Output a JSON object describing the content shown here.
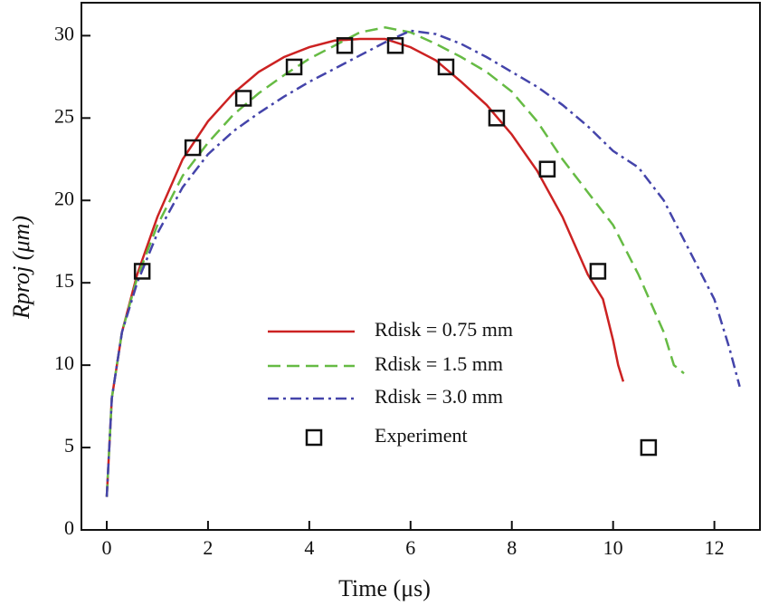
{
  "chart_data": {
    "type": "line",
    "xlabel": "Time (μs)",
    "ylabel": "Rproj (μm)",
    "xlim": [
      -0.5,
      12.9
    ],
    "ylim": [
      0,
      32
    ],
    "xticks": [
      0,
      2,
      4,
      6,
      8,
      10,
      12
    ],
    "yticks": [
      0,
      5,
      10,
      15,
      20,
      25,
      30
    ],
    "series": [
      {
        "name": "Rdisk = 0.75 mm",
        "color": "#cc2222",
        "style": "solid",
        "x": [
          0,
          0.1,
          0.3,
          0.6,
          1,
          1.5,
          2,
          2.5,
          3,
          3.5,
          4,
          4.5,
          5,
          5.5,
          6,
          6.5,
          7,
          7.5,
          8,
          8.5,
          9,
          9.5,
          9.8,
          10,
          10.1,
          10.2
        ],
        "y": [
          2,
          8,
          12,
          15.5,
          19,
          22.5,
          24.8,
          26.5,
          27.8,
          28.7,
          29.3,
          29.7,
          29.8,
          29.8,
          29.3,
          28.5,
          27.2,
          25.8,
          24,
          21.8,
          19,
          15.5,
          14,
          11.5,
          10,
          9
        ]
      },
      {
        "name": "Rdisk = 1.5 mm",
        "color": "#66bb44",
        "style": "dashed",
        "x": [
          0,
          0.1,
          0.3,
          0.6,
          1,
          1.5,
          2,
          2.5,
          3,
          3.5,
          4,
          4.5,
          5,
          5.5,
          6,
          6.5,
          7,
          7.5,
          8,
          8.5,
          9,
          9.5,
          10,
          10.5,
          11,
          11.2,
          11.4
        ],
        "y": [
          2,
          8,
          12,
          15.3,
          18.5,
          21.5,
          23.5,
          25.2,
          26.5,
          27.6,
          28.6,
          29.4,
          30.2,
          30.5,
          30.2,
          29.5,
          28.7,
          27.8,
          26.6,
          24.8,
          22.5,
          20.5,
          18.5,
          15.5,
          12,
          10,
          9.5
        ]
      },
      {
        "name": "Rdisk = 3.0 mm",
        "color": "#4444aa",
        "style": "dashdot",
        "x": [
          0,
          0.1,
          0.3,
          0.6,
          1,
          1.5,
          2,
          2.5,
          3,
          3.5,
          4,
          4.5,
          5,
          5.5,
          6,
          6.5,
          7,
          7.5,
          8,
          8.5,
          9,
          9.5,
          10,
          10.5,
          11,
          11.5,
          12,
          12.3,
          12.5
        ],
        "y": [
          2,
          8,
          12,
          15,
          18,
          20.8,
          22.8,
          24.2,
          25.3,
          26.3,
          27.2,
          28,
          28.8,
          29.6,
          30.3,
          30.1,
          29.5,
          28.7,
          27.8,
          26.9,
          25.8,
          24.5,
          23,
          22,
          20,
          17,
          14,
          11,
          8.7
        ]
      },
      {
        "name": "Experiment",
        "color": "#111111",
        "style": "marker",
        "x": [
          0.7,
          1.7,
          2.7,
          3.7,
          4.7,
          5.7,
          6.7,
          7.7,
          8.7,
          9.7,
          10.7
        ],
        "y": [
          15.7,
          23.2,
          26.2,
          28.1,
          29.4,
          29.4,
          28.1,
          25,
          21.9,
          15.7,
          5
        ]
      }
    ]
  }
}
